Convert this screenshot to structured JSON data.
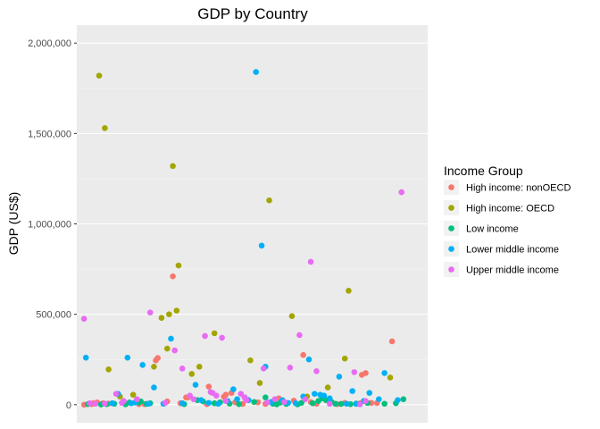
{
  "chart_data": {
    "type": "scatter",
    "title": "GDP by Country",
    "xlabel": "",
    "ylabel": "GDP (US$)",
    "ylim": [
      -100000,
      2100000
    ],
    "yticks": [
      0,
      500000,
      1000000,
      1500000,
      2000000
    ],
    "ytick_labels": [
      "0",
      "500,000",
      "1,000,000",
      "1,500,000",
      "2,000,000"
    ],
    "xlim": [
      0,
      180
    ],
    "grid": true,
    "legend": {
      "title": "Income Group",
      "placement": "right"
    },
    "series": [
      {
        "name": "High income: nonOECD",
        "color": "#F8766D",
        "points": [
          [
            1,
            0
          ],
          [
            5,
            3000
          ],
          [
            6,
            9000
          ],
          [
            8,
            12000
          ],
          [
            11,
            8000
          ],
          [
            14,
            6000
          ],
          [
            30,
            3000
          ],
          [
            33,
            3000
          ],
          [
            39,
            245000
          ],
          [
            40,
            258000
          ],
          [
            45,
            18000
          ],
          [
            48,
            710000
          ],
          [
            52,
            8000
          ],
          [
            55,
            40000
          ],
          [
            56,
            40000
          ],
          [
            66,
            3000
          ],
          [
            67,
            100000
          ],
          [
            75,
            44000
          ],
          [
            76,
            55000
          ],
          [
            79,
            65000
          ],
          [
            81,
            13000
          ],
          [
            85,
            4000
          ],
          [
            93,
            13000
          ],
          [
            97,
            4000
          ],
          [
            104,
            35000
          ],
          [
            112,
            22000
          ],
          [
            117,
            275000
          ],
          [
            121,
            14000
          ],
          [
            124,
            5000
          ],
          [
            135,
            3000
          ],
          [
            139,
            10000
          ],
          [
            147,
            7000
          ],
          [
            148,
            165000
          ],
          [
            150,
            175000
          ],
          [
            153,
            10000
          ],
          [
            156,
            9000
          ],
          [
            164,
            350000
          ]
        ]
      },
      {
        "name": "High income: OECD",
        "color": "#A3A500",
        "points": [
          [
            9,
            1820000
          ],
          [
            12,
            1530000
          ],
          [
            14,
            195000
          ],
          [
            20,
            45000
          ],
          [
            27,
            55000
          ],
          [
            38,
            210000
          ],
          [
            42,
            480000
          ],
          [
            45,
            310000
          ],
          [
            46,
            500000
          ],
          [
            48,
            1320000
          ],
          [
            50,
            520000
          ],
          [
            51,
            770000
          ],
          [
            58,
            170000
          ],
          [
            62,
            210000
          ],
          [
            70,
            395000
          ],
          [
            89,
            245000
          ],
          [
            94,
            120000
          ],
          [
            99,
            1130000
          ],
          [
            111,
            490000
          ],
          [
            119,
            45000
          ],
          [
            130,
            95000
          ],
          [
            139,
            255000
          ],
          [
            141,
            630000
          ],
          [
            163,
            150000
          ]
        ]
      },
      {
        "name": "Low income",
        "color": "#00BF7D",
        "points": [
          [
            3,
            3000
          ],
          [
            10,
            1000
          ],
          [
            13,
            3000
          ],
          [
            17,
            5000
          ],
          [
            23,
            2000
          ],
          [
            25,
            12000
          ],
          [
            30,
            12000
          ],
          [
            31,
            18000
          ],
          [
            34,
            4000
          ],
          [
            36,
            8000
          ],
          [
            54,
            3000
          ],
          [
            61,
            25000
          ],
          [
            64,
            18000
          ],
          [
            70,
            8000
          ],
          [
            73,
            13000
          ],
          [
            78,
            6000
          ],
          [
            83,
            3000
          ],
          [
            91,
            15000
          ],
          [
            97,
            40000
          ],
          [
            101,
            5000
          ],
          [
            103,
            2000
          ],
          [
            105,
            12000
          ],
          [
            108,
            4000
          ],
          [
            114,
            2000
          ],
          [
            116,
            10000
          ],
          [
            122,
            8000
          ],
          [
            125,
            20000
          ],
          [
            127,
            35000
          ],
          [
            129,
            25000
          ],
          [
            132,
            15000
          ],
          [
            134,
            5000
          ],
          [
            137,
            4000
          ],
          [
            142,
            3000
          ],
          [
            145,
            6000
          ],
          [
            151,
            10000
          ],
          [
            160,
            5000
          ],
          [
            166,
            8000
          ],
          [
            170,
            30000
          ]
        ]
      },
      {
        "name": "Lower middle income",
        "color": "#00B0F6",
        "points": [
          [
            2,
            260000
          ],
          [
            16,
            8000
          ],
          [
            19,
            60000
          ],
          [
            24,
            260000
          ],
          [
            26,
            8000
          ],
          [
            28,
            12000
          ],
          [
            32,
            220000
          ],
          [
            35,
            5000
          ],
          [
            38,
            95000
          ],
          [
            43,
            5000
          ],
          [
            47,
            365000
          ],
          [
            53,
            8000
          ],
          [
            60,
            110000
          ],
          [
            63,
            25000
          ],
          [
            67,
            10000
          ],
          [
            72,
            5000
          ],
          [
            77,
            20000
          ],
          [
            80,
            85000
          ],
          [
            82,
            30000
          ],
          [
            86,
            40000
          ],
          [
            88,
            25000
          ],
          [
            92,
            1840000
          ],
          [
            95,
            880000
          ],
          [
            97,
            210000
          ],
          [
            100,
            15000
          ],
          [
            106,
            25000
          ],
          [
            109,
            10000
          ],
          [
            113,
            8000
          ],
          [
            117,
            45000
          ],
          [
            120,
            250000
          ],
          [
            123,
            60000
          ],
          [
            126,
            55000
          ],
          [
            128,
            50000
          ],
          [
            131,
            35000
          ],
          [
            136,
            155000
          ],
          [
            140,
            5000
          ],
          [
            143,
            75000
          ],
          [
            145,
            4000
          ],
          [
            149,
            20000
          ],
          [
            152,
            65000
          ],
          [
            157,
            30000
          ],
          [
            160,
            175000
          ],
          [
            167,
            25000
          ]
        ]
      },
      {
        "name": "Upper middle income",
        "color": "#E76BF3",
        "points": [
          [
            1,
            475000
          ],
          [
            4,
            8000
          ],
          [
            7,
            5000
          ],
          [
            12,
            6000
          ],
          [
            18,
            60000
          ],
          [
            21,
            10000
          ],
          [
            22,
            20000
          ],
          [
            29,
            30000
          ],
          [
            36,
            510000
          ],
          [
            44,
            10000
          ],
          [
            49,
            300000
          ],
          [
            53,
            200000
          ],
          [
            57,
            50000
          ],
          [
            59,
            30000
          ],
          [
            65,
            380000
          ],
          [
            68,
            70000
          ],
          [
            69,
            65000
          ],
          [
            71,
            50000
          ],
          [
            74,
            370000
          ],
          [
            76,
            20000
          ],
          [
            84,
            60000
          ],
          [
            86,
            40000
          ],
          [
            87,
            25000
          ],
          [
            96,
            200000
          ],
          [
            98,
            12000
          ],
          [
            102,
            30000
          ],
          [
            107,
            15000
          ],
          [
            110,
            205000
          ],
          [
            115,
            385000
          ],
          [
            118,
            30000
          ],
          [
            121,
            790000
          ],
          [
            124,
            185000
          ],
          [
            131,
            5000
          ],
          [
            144,
            180000
          ],
          [
            147,
            2000
          ],
          [
            150,
            20000
          ],
          [
            169,
            1175000
          ]
        ]
      }
    ]
  }
}
